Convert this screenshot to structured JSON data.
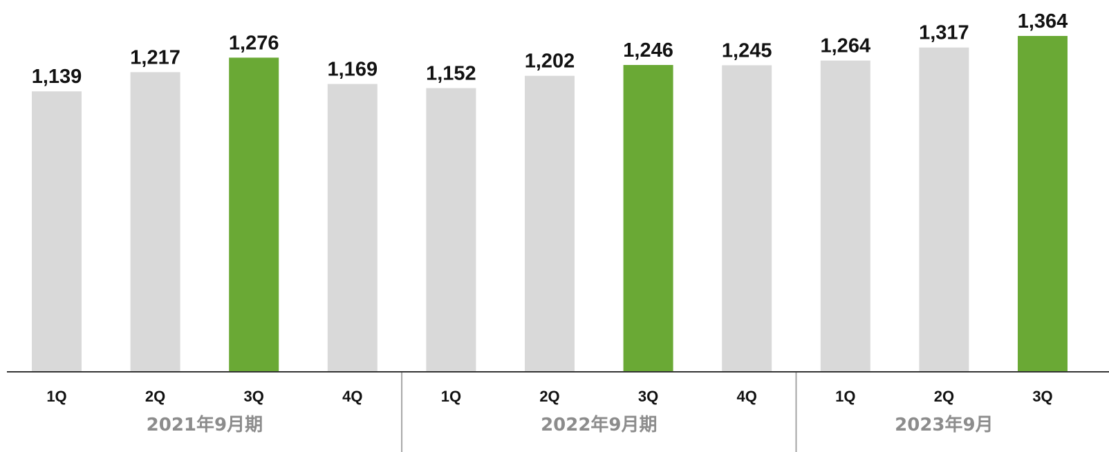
{
  "chart_data": {
    "type": "bar",
    "categories": [
      "1Q",
      "2Q",
      "3Q",
      "4Q",
      "1Q",
      "2Q",
      "3Q",
      "4Q",
      "1Q",
      "2Q",
      "3Q"
    ],
    "values": [
      1139,
      1217,
      1276,
      1169,
      1152,
      1202,
      1246,
      1245,
      1264,
      1317,
      1364
    ],
    "value_labels": [
      "1,139",
      "1,217",
      "1,276",
      "1,169",
      "1,152",
      "1,202",
      "1,246",
      "1,245",
      "1,264",
      "1,317",
      "1,364"
    ],
    "groups": [
      {
        "label": "2021年9月期",
        "start": 0,
        "end": 3
      },
      {
        "label": "2022年9月期",
        "start": 4,
        "end": 7
      },
      {
        "label": "2023年9月",
        "start": 8,
        "end": 10
      }
    ],
    "highlight_indices": [
      2,
      6,
      10
    ],
    "colors": {
      "default_bar": "#d9d9d9",
      "highlight_bar": "#6aa935",
      "axis": "#333333",
      "separator": "#a6a6a6",
      "value_label": "#111111",
      "tick_label": "#111111",
      "group_label": "#8c8c8c"
    },
    "title": "",
    "xlabel": "",
    "ylabel": "",
    "ylim": [
      0,
      1364
    ],
    "grid": false,
    "legend": "none"
  }
}
